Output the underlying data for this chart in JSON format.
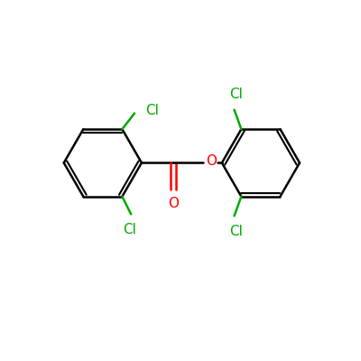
{
  "background_color": "#ffffff",
  "bond_color": "#000000",
  "cl_color": "#00aa00",
  "o_color": "#ff0000",
  "line_width": 1.8,
  "font_size": 11,
  "figsize": [
    4.0,
    4.0
  ],
  "dpi": 100,
  "xlim": [
    0,
    10
  ],
  "ylim": [
    0,
    10
  ]
}
